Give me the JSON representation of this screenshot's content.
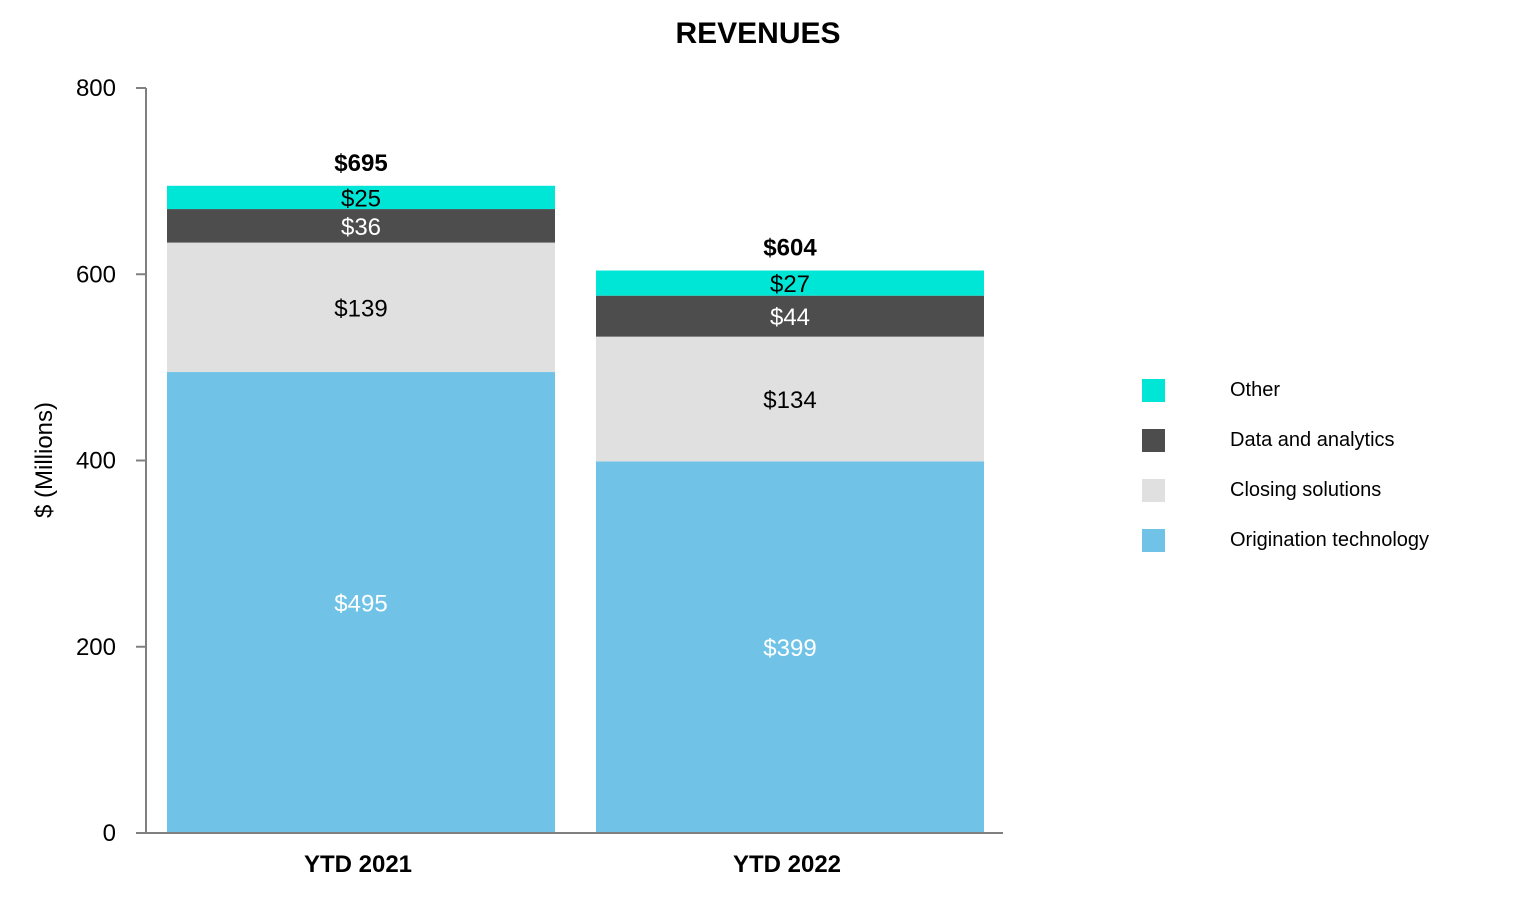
{
  "chart_data": {
    "type": "bar",
    "stacked": true,
    "title": "REVENUES",
    "xlabel": "",
    "ylabel": "$ (Millions)",
    "ylim": [
      0,
      800
    ],
    "yticks": [
      "0",
      "200",
      "400",
      "600",
      "800"
    ],
    "grid": false,
    "legend_position": "right",
    "categories": [
      "YTD 2021",
      "YTD 2022"
    ],
    "totals": [
      695,
      604
    ],
    "total_labels": [
      "$695",
      "$604"
    ],
    "series": [
      {
        "name": "Origination technology",
        "color": "#70c3e7",
        "label_color": "#ffffff",
        "values": [
          495,
          399
        ],
        "labels": [
          "$495",
          "$399"
        ]
      },
      {
        "name": "Closing solutions",
        "color": "#e0e0e0",
        "label_color": "#000000",
        "values": [
          139,
          134
        ],
        "labels": [
          "$139",
          "$134"
        ]
      },
      {
        "name": "Data and analytics",
        "color": "#4d4d4d",
        "label_color": "#ffffff",
        "values": [
          36,
          44
        ],
        "labels": [
          "$36",
          "$44"
        ]
      },
      {
        "name": "Other",
        "color": "#00e6d6",
        "label_color": "#000000",
        "values": [
          25,
          27
        ],
        "labels": [
          "$25",
          "$27"
        ]
      }
    ],
    "legend_order": [
      "Other",
      "Data and analytics",
      "Closing solutions",
      "Origination technology"
    ]
  }
}
